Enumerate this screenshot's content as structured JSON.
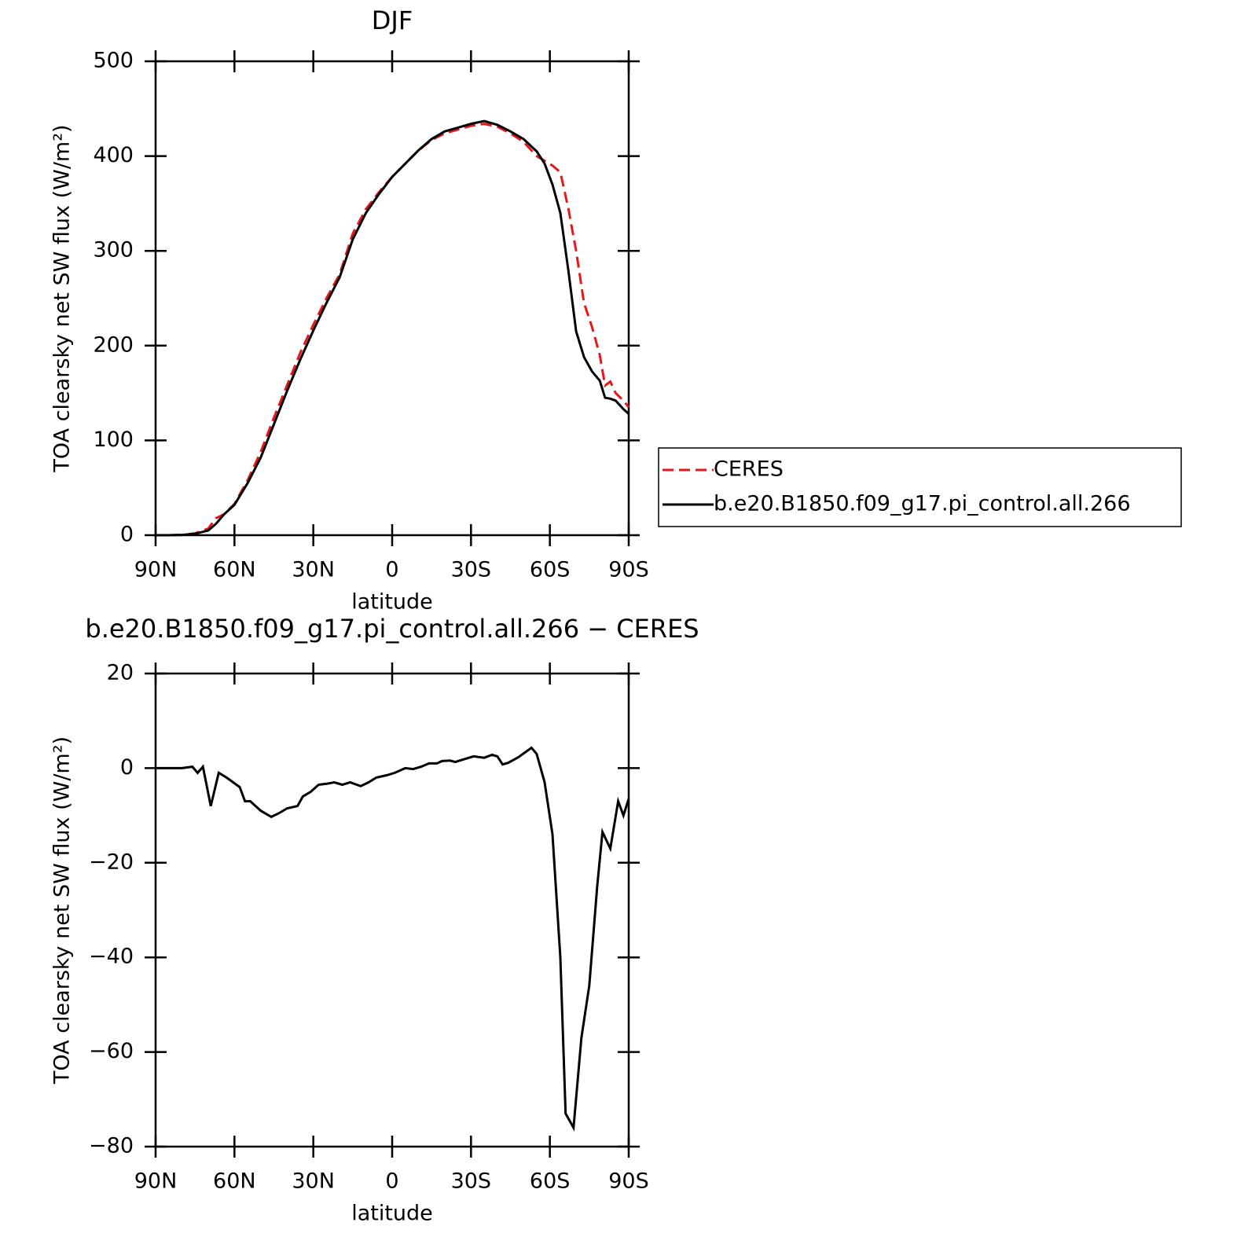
{
  "chart_data": [
    {
      "type": "line",
      "title": "DJF",
      "xlabel": "latitude",
      "ylabel": "TOA clearsky net SW flux (W/m²)",
      "xlim": [
        90,
        -90
      ],
      "ylim": [
        0,
        500
      ],
      "xticks": [
        {
          "value": 90,
          "label": "90N"
        },
        {
          "value": 60,
          "label": "60N"
        },
        {
          "value": 30,
          "label": "30N"
        },
        0,
        {
          "value": -30,
          "label": "30S"
        },
        {
          "value": -60,
          "label": "60S"
        },
        {
          "value": -90,
          "label": "90S"
        }
      ],
      "yticks": [
        0,
        100,
        200,
        300,
        400,
        500
      ],
      "legend": "right",
      "x": [
        90,
        85,
        80,
        75,
        70,
        67,
        64,
        60,
        55,
        50,
        45,
        40,
        35,
        30,
        25,
        20,
        15,
        10,
        5,
        0,
        -5,
        -10,
        -15,
        -20,
        -25,
        -30,
        -35,
        -40,
        -45,
        -50,
        -55,
        -58,
        -61,
        -64,
        -67,
        -70,
        -73,
        -76,
        -79,
        -81,
        -83,
        -85,
        -88,
        -90
      ],
      "series": [
        {
          "name": "CERES",
          "color": "#e8161b",
          "dash": true,
          "values": [
            0,
            0,
            0.3,
            2,
            7,
            18,
            22,
            33,
            58,
            88,
            124,
            158,
            192,
            222,
            250,
            275,
            318,
            344,
            362,
            378,
            392,
            406,
            417,
            424,
            428,
            432,
            434,
            431,
            424,
            415,
            400,
            395,
            390,
            383,
            345,
            300,
            245,
            220,
            190,
            158,
            162,
            150,
            142,
            135
          ]
        },
        {
          "name": "b.e20.B1850.f09_g17.pi_control.all.266",
          "color": "#000000",
          "dash": false,
          "values": [
            0,
            0,
            0.3,
            1.5,
            5,
            12,
            22,
            32,
            55,
            82,
            117,
            152,
            185,
            216,
            245,
            272,
            312,
            340,
            360,
            378,
            392,
            406,
            418,
            426,
            430,
            434,
            437,
            433,
            426,
            418,
            405,
            392,
            370,
            340,
            280,
            215,
            188,
            173,
            163,
            145,
            144,
            142,
            133,
            128
          ]
        }
      ]
    },
    {
      "type": "line",
      "title": "b.e20.B1850.f09_g17.pi_control.all.266 − CERES",
      "xlabel": "latitude",
      "ylabel": "TOA clearsky net SW flux (W/m²)",
      "xlim": [
        90,
        -90
      ],
      "ylim": [
        -80,
        20
      ],
      "xticks": [
        {
          "value": 90,
          "label": "90N"
        },
        {
          "value": 60,
          "label": "60N"
        },
        {
          "value": 30,
          "label": "30N"
        },
        0,
        {
          "value": -30,
          "label": "30S"
        },
        {
          "value": -60,
          "label": "60S"
        },
        {
          "value": -90,
          "label": "90S"
        }
      ],
      "yticks": [
        {
          "value": -80,
          "label": "−80"
        },
        {
          "value": -60,
          "label": "−60"
        },
        {
          "value": -40,
          "label": "−40"
        },
        {
          "value": -20,
          "label": "−20"
        },
        0,
        20
      ],
      "x": [
        90,
        85,
        80,
        76,
        74,
        72,
        69,
        66,
        63,
        58,
        56,
        54,
        50,
        46,
        43,
        40,
        36,
        34,
        31,
        28,
        25,
        22,
        19,
        16,
        12,
        9,
        6,
        2,
        -1,
        -5,
        -8,
        -11,
        -14,
        -17,
        -19,
        -22,
        -24,
        -28,
        -31,
        -35,
        -38,
        -40,
        -42,
        -44,
        -48,
        -51,
        -53,
        -55,
        -58,
        -61,
        -64,
        -66,
        -69,
        -72,
        -75,
        -78,
        -80,
        -83,
        -86,
        -88,
        -90
      ],
      "series": [
        {
          "color": "#000000",
          "dash": false,
          "values": [
            0,
            0,
            0,
            0.3,
            -1,
            0.3,
            -8,
            -1,
            -2,
            -4,
            -7,
            -7,
            -9,
            -10.3,
            -9.5,
            -8.5,
            -8,
            -6,
            -5,
            -3.5,
            -3.3,
            -3,
            -3.5,
            -3,
            -3.8,
            -3,
            -2,
            -1.5,
            -1,
            0,
            -0.2,
            0.3,
            1,
            1,
            1.5,
            1.6,
            1.3,
            2,
            2.5,
            2.2,
            2.8,
            2.5,
            0.8,
            1.1,
            2.3,
            3.5,
            4.3,
            3,
            -3,
            -14,
            -40,
            -73,
            -76,
            -57,
            -46,
            -25,
            -13.5,
            -17,
            -7,
            -10,
            -6.5
          ]
        }
      ]
    }
  ]
}
